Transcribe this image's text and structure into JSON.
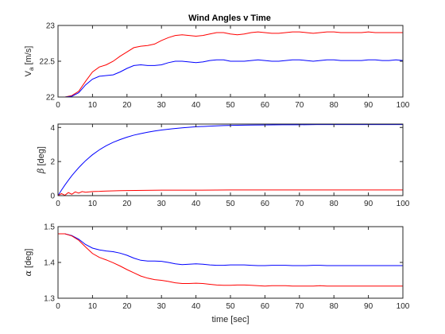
{
  "chart_data": [
    {
      "type": "line",
      "title": "Wind Angles v Time",
      "ylabel_main": "V",
      "ylabel_sub": "a",
      "ylabel_unit": " [m/s]",
      "xlabel": "",
      "xlim": [
        0,
        100
      ],
      "ylim": [
        22,
        23
      ],
      "xticks": [
        "0",
        "10",
        "20",
        "30",
        "40",
        "50",
        "60",
        "70",
        "80",
        "90",
        "100"
      ],
      "yticks": [
        "22",
        "22.5",
        "23"
      ],
      "grid": false,
      "series": [
        {
          "color": "#ff0000",
          "x": [
            0,
            2,
            4,
            6,
            8,
            10,
            12,
            14,
            16,
            18,
            20,
            22,
            24,
            26,
            28,
            30,
            32,
            34,
            36,
            38,
            40,
            42,
            44,
            46,
            48,
            50,
            52,
            54,
            56,
            58,
            60,
            62,
            64,
            66,
            68,
            70,
            72,
            74,
            76,
            78,
            80,
            82,
            84,
            86,
            88,
            90,
            92,
            94,
            96,
            98,
            100
          ],
          "y": [
            22,
            22,
            22.02,
            22.08,
            22.22,
            22.35,
            22.42,
            22.45,
            22.5,
            22.57,
            22.63,
            22.69,
            22.71,
            22.72,
            22.74,
            22.79,
            22.83,
            22.86,
            22.87,
            22.86,
            22.85,
            22.86,
            22.88,
            22.9,
            22.9,
            22.88,
            22.87,
            22.88,
            22.9,
            22.91,
            22.9,
            22.89,
            22.89,
            22.9,
            22.91,
            22.91,
            22.9,
            22.89,
            22.9,
            22.91,
            22.91,
            22.9,
            22.9,
            22.9,
            22.9,
            22.91,
            22.9,
            22.9,
            22.9,
            22.9,
            22.9
          ]
        },
        {
          "color": "#0000ff",
          "x": [
            0,
            2,
            4,
            6,
            8,
            10,
            12,
            14,
            16,
            18,
            20,
            22,
            24,
            26,
            28,
            30,
            32,
            34,
            36,
            38,
            40,
            42,
            44,
            46,
            48,
            50,
            52,
            54,
            56,
            58,
            60,
            62,
            64,
            66,
            68,
            70,
            72,
            74,
            76,
            78,
            80,
            82,
            84,
            86,
            88,
            90,
            92,
            94,
            96,
            98,
            100
          ],
          "y": [
            22,
            22,
            22.01,
            22.06,
            22.17,
            22.25,
            22.29,
            22.3,
            22.31,
            22.35,
            22.4,
            22.44,
            22.45,
            22.44,
            22.44,
            22.45,
            22.48,
            22.5,
            22.5,
            22.49,
            22.48,
            22.49,
            22.51,
            22.52,
            22.52,
            22.5,
            22.5,
            22.5,
            22.51,
            22.52,
            22.51,
            22.5,
            22.5,
            22.51,
            22.52,
            22.52,
            22.51,
            22.5,
            22.51,
            22.52,
            22.52,
            22.51,
            22.51,
            22.51,
            22.51,
            22.52,
            22.52,
            22.51,
            22.51,
            22.52,
            22.51
          ]
        }
      ]
    },
    {
      "type": "line",
      "title": "",
      "ylabel_greek": "β",
      "ylabel_unit": " [deg]",
      "xlabel": "",
      "xlim": [
        0,
        100
      ],
      "ylim": [
        0,
        4.2
      ],
      "xticks": [
        "0",
        "10",
        "20",
        "30",
        "40",
        "50",
        "60",
        "70",
        "80",
        "90",
        "100"
      ],
      "yticks": [
        "0",
        "2",
        "4"
      ],
      "grid": false,
      "series": [
        {
          "color": "#0000ff",
          "x": [
            0,
            1,
            2,
            3,
            4,
            5,
            6,
            7,
            8,
            9,
            10,
            12,
            14,
            16,
            18,
            20,
            22,
            24,
            26,
            28,
            30,
            33,
            36,
            40,
            44,
            48,
            52,
            56,
            60,
            65,
            70,
            75,
            80,
            85,
            90,
            95,
            100
          ],
          "y": [
            0,
            0.32,
            0.62,
            0.9,
            1.17,
            1.41,
            1.64,
            1.85,
            2.05,
            2.23,
            2.4,
            2.69,
            2.93,
            3.13,
            3.29,
            3.43,
            3.55,
            3.64,
            3.72,
            3.79,
            3.85,
            3.92,
            3.98,
            4.04,
            4.08,
            4.11,
            4.13,
            4.14,
            4.15,
            4.16,
            4.16,
            4.17,
            4.17,
            4.17,
            4.17,
            4.17,
            4.17
          ]
        },
        {
          "color": "#ff0000",
          "x": [
            0,
            1,
            2,
            3,
            4,
            5,
            6,
            7,
            8,
            10,
            12,
            14,
            16,
            18,
            20,
            25,
            30,
            35,
            40,
            50,
            60,
            70,
            80,
            90,
            100
          ],
          "y": [
            0,
            0.12,
            0.02,
            0.18,
            0.08,
            0.22,
            0.15,
            0.24,
            0.2,
            0.24,
            0.25,
            0.27,
            0.28,
            0.29,
            0.3,
            0.31,
            0.32,
            0.32,
            0.32,
            0.33,
            0.33,
            0.33,
            0.33,
            0.33,
            0.33
          ]
        }
      ]
    },
    {
      "type": "line",
      "title": "",
      "ylabel_greek": "α",
      "ylabel_unit": " [deg]",
      "xlabel": "time [sec]",
      "xlim": [
        0,
        100
      ],
      "ylim": [
        1.3,
        1.5
      ],
      "xticks": [
        "0",
        "10",
        "20",
        "30",
        "40",
        "50",
        "60",
        "70",
        "80",
        "90",
        "100"
      ],
      "yticks": [
        "1.3",
        "1.4",
        "1.5"
      ],
      "grid": false,
      "series": [
        {
          "color": "#0000ff",
          "x": [
            0,
            2,
            4,
            6,
            8,
            10,
            12,
            14,
            16,
            18,
            20,
            22,
            24,
            26,
            28,
            30,
            32,
            34,
            36,
            38,
            40,
            42,
            44,
            46,
            48,
            50,
            52,
            54,
            56,
            58,
            60,
            62,
            64,
            66,
            68,
            70,
            72,
            74,
            76,
            78,
            80,
            82,
            84,
            86,
            88,
            90,
            92,
            94,
            96,
            98,
            100
          ],
          "y": [
            1.48,
            1.48,
            1.475,
            1.465,
            1.45,
            1.44,
            1.435,
            1.432,
            1.43,
            1.426,
            1.42,
            1.412,
            1.406,
            1.404,
            1.404,
            1.403,
            1.4,
            1.396,
            1.394,
            1.395,
            1.396,
            1.395,
            1.393,
            1.392,
            1.392,
            1.393,
            1.393,
            1.393,
            1.392,
            1.391,
            1.391,
            1.392,
            1.392,
            1.392,
            1.391,
            1.391,
            1.391,
            1.392,
            1.392,
            1.391,
            1.391,
            1.391,
            1.391,
            1.391,
            1.391,
            1.391,
            1.391,
            1.391,
            1.391,
            1.391,
            1.391
          ]
        },
        {
          "color": "#ff0000",
          "x": [
            0,
            2,
            4,
            6,
            8,
            10,
            12,
            14,
            16,
            18,
            20,
            22,
            24,
            26,
            28,
            30,
            32,
            34,
            36,
            38,
            40,
            42,
            44,
            46,
            48,
            50,
            52,
            54,
            56,
            58,
            60,
            62,
            64,
            66,
            68,
            70,
            72,
            74,
            76,
            78,
            80,
            82,
            84,
            86,
            88,
            90,
            92,
            94,
            96,
            98,
            100
          ],
          "y": [
            1.48,
            1.48,
            1.474,
            1.462,
            1.443,
            1.425,
            1.414,
            1.407,
            1.399,
            1.39,
            1.38,
            1.371,
            1.362,
            1.356,
            1.352,
            1.35,
            1.347,
            1.343,
            1.341,
            1.341,
            1.342,
            1.341,
            1.339,
            1.337,
            1.336,
            1.336,
            1.337,
            1.337,
            1.336,
            1.335,
            1.334,
            1.335,
            1.335,
            1.335,
            1.334,
            1.334,
            1.334,
            1.334,
            1.335,
            1.334,
            1.334,
            1.334,
            1.334,
            1.334,
            1.334,
            1.334,
            1.334,
            1.334,
            1.334,
            1.334,
            1.334
          ]
        }
      ]
    }
  ]
}
